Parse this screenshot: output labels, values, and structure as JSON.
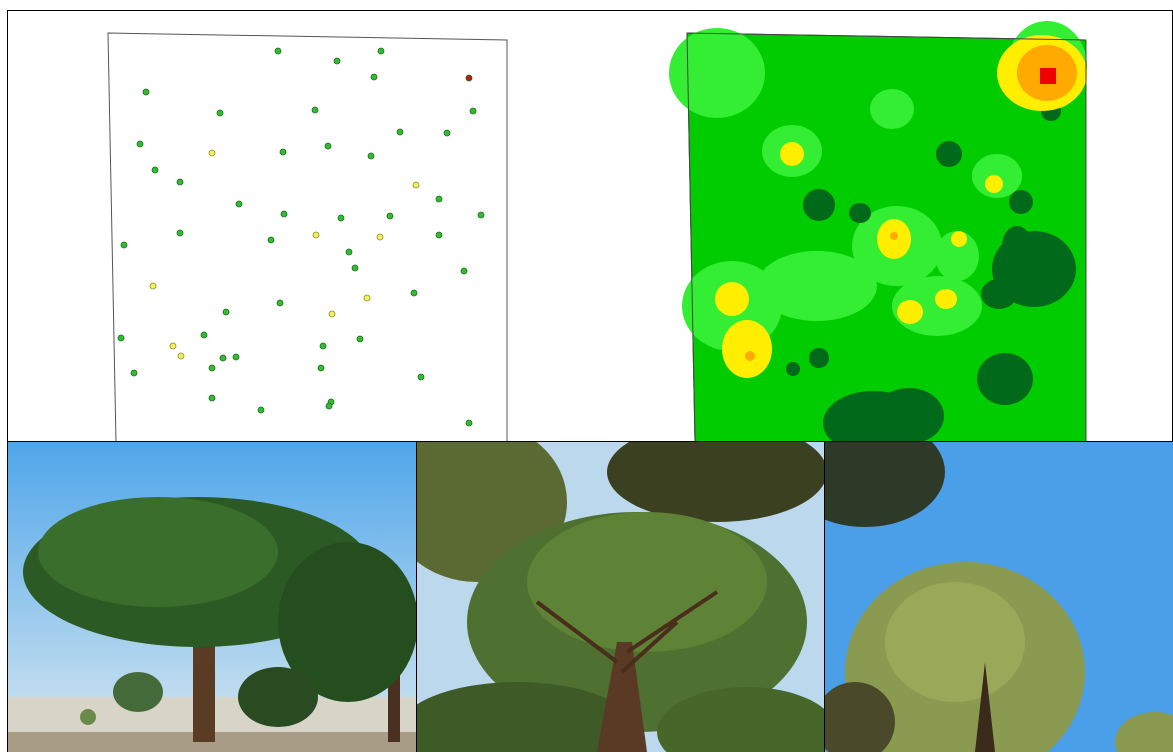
{
  "colors": {
    "point_green": "#33bb33",
    "point_yellow": "#f0f060",
    "point_red": "#cc1111",
    "map_bright_green": "#00cc00",
    "map_light_green": "#33ee33",
    "map_dark_green": "#006a1a",
    "map_yellow": "#ffee00",
    "map_orange": "#ffaa00",
    "map_red": "#ee0000",
    "sky": "#4a9fe8"
  },
  "panels": {
    "points": {
      "type": "point-distribution-map",
      "point_classes": [
        "green",
        "yellow",
        "red"
      ]
    },
    "map": {
      "type": "interpolated-contour-map"
    }
  },
  "photos": [
    "stone-pine-tree",
    "pine-canopy-from-below",
    "pine-crowns-against-sky"
  ]
}
